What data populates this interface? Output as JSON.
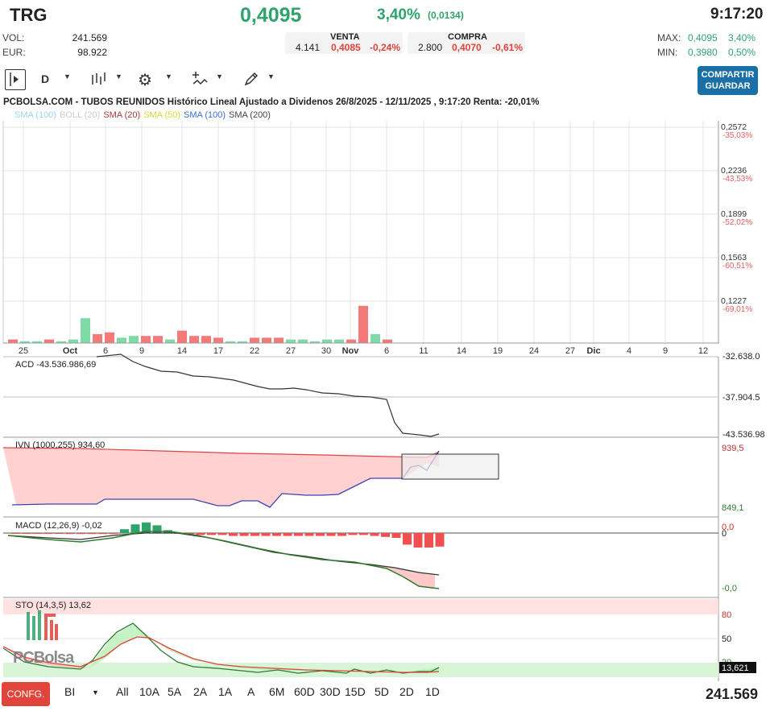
{
  "header": {
    "ticker": "TRG",
    "price": "0,4095",
    "pct": "3,40%",
    "change": "(0,0134)",
    "time": "9:17:20"
  },
  "stats": {
    "vol_label": "VOL:",
    "vol_value": "241.569",
    "eur_label": "EUR:",
    "eur_value": "98.922"
  },
  "bid": {
    "venta_label": "VENTA",
    "venta_qty": "4.141",
    "venta_price": "0,4085",
    "venta_pct": "-0,24%",
    "compra_label": "COMPRA",
    "compra_qty": "2.800",
    "compra_price": "0,4070",
    "compra_pct": "-0,61%"
  },
  "range": {
    "max_label": "MAX:",
    "max_value": "0,4095",
    "max_pct": "3,40%",
    "min_label": "MIN:",
    "min_value": "0,3980",
    "min_pct": "0,50%"
  },
  "toolbar": {
    "interval": "D",
    "share_line1": "COMPARTIR",
    "share_line2": "GUARDAR"
  },
  "chart_title": "PCBOLSA.COM - TUBOS REUNIDOS Histórico Lineal Ajustado a Dividenos 26/8/2025 - 12/11/2025 , 9:17:20 Renta: -20,01%",
  "legend": [
    {
      "text": "SMA (100)",
      "color": "#9fd0ee"
    },
    {
      "text": "BOLL (20)",
      "color": "#cccccc"
    },
    {
      "text": "SMA (20)",
      "color": "#a33a3a"
    },
    {
      "text": "SMA (50)",
      "color": "#d6d93a"
    },
    {
      "text": "SMA (100)",
      "color": "#3a6fd0"
    },
    {
      "text": "SMA (200)",
      "color": "#444444"
    }
  ],
  "price_axis": [
    {
      "price": "0,2572",
      "pct": "-35,03%"
    },
    {
      "price": "0,2236",
      "pct": "-43,53%"
    },
    {
      "price": "0,1899",
      "pct": "-52,02%"
    },
    {
      "price": "0,1563",
      "pct": "-60,51%"
    },
    {
      "price": "0,1227",
      "pct": "-69,01%"
    }
  ],
  "x_axis": [
    "25",
    "Oct",
    "6",
    "9",
    "14",
    "17",
    "22",
    "27",
    "30",
    "Nov",
    "6",
    "11",
    "14",
    "19",
    "24",
    "27",
    "Dic",
    "4",
    "9",
    "12"
  ],
  "volume_bars": [
    {
      "v": 2,
      "up": false
    },
    {
      "v": 1,
      "up": true
    },
    {
      "v": 1,
      "up": true
    },
    {
      "v": 2,
      "up": false
    },
    {
      "v": 1,
      "up": true
    },
    {
      "v": 2,
      "up": true
    },
    {
      "v": 14,
      "up": true
    },
    {
      "v": 5,
      "up": false
    },
    {
      "v": 6,
      "up": false
    },
    {
      "v": 3,
      "up": true
    },
    {
      "v": 4,
      "up": true
    },
    {
      "v": 4,
      "up": false
    },
    {
      "v": 4,
      "up": false
    },
    {
      "v": 2,
      "up": true
    },
    {
      "v": 7,
      "up": false
    },
    {
      "v": 4,
      "up": false
    },
    {
      "v": 4,
      "up": false
    },
    {
      "v": 3,
      "up": false
    },
    {
      "v": 1,
      "up": true
    },
    {
      "v": 1,
      "up": true
    },
    {
      "v": 3,
      "up": false
    },
    {
      "v": 3,
      "up": false
    },
    {
      "v": 3,
      "up": false
    },
    {
      "v": 2,
      "up": true
    },
    {
      "v": 2,
      "up": true
    },
    {
      "v": 1,
      "up": true
    },
    {
      "v": 2,
      "up": true
    },
    {
      "v": 2,
      "up": true
    },
    {
      "v": 2,
      "up": false
    },
    {
      "v": 21,
      "up": false
    },
    {
      "v": 5,
      "up": true
    },
    {
      "v": 2,
      "up": false
    }
  ],
  "acd": {
    "label": "ACD -43.536.986,69",
    "top_value": "-32.638.0",
    "mid_value": "-37.904.5",
    "bottom_value": "-43.536.98"
  },
  "ivn": {
    "label": "IVN (1000,255)   934,60",
    "top_value": "939,5",
    "bottom_value": "849,1"
  },
  "macd": {
    "label": "MACD (12,26,9)   -0,02",
    "top_value": "0,0",
    "zero_value": "0",
    "bottom_value": "-0,0"
  },
  "sto": {
    "label": "STO (14,3,5)   13,62",
    "v80": "80",
    "v50": "50",
    "v20": "20",
    "current": "13,621"
  },
  "watermark": "PCBolsa",
  "bottom": {
    "config_label": "CONFG.",
    "mode": "BI",
    "periods": [
      "All",
      "10A",
      "5A",
      "2A",
      "1A",
      "A",
      "6M",
      "60D",
      "30D",
      "15D",
      "5D",
      "2D",
      "1D"
    ],
    "total": "241.569"
  }
}
